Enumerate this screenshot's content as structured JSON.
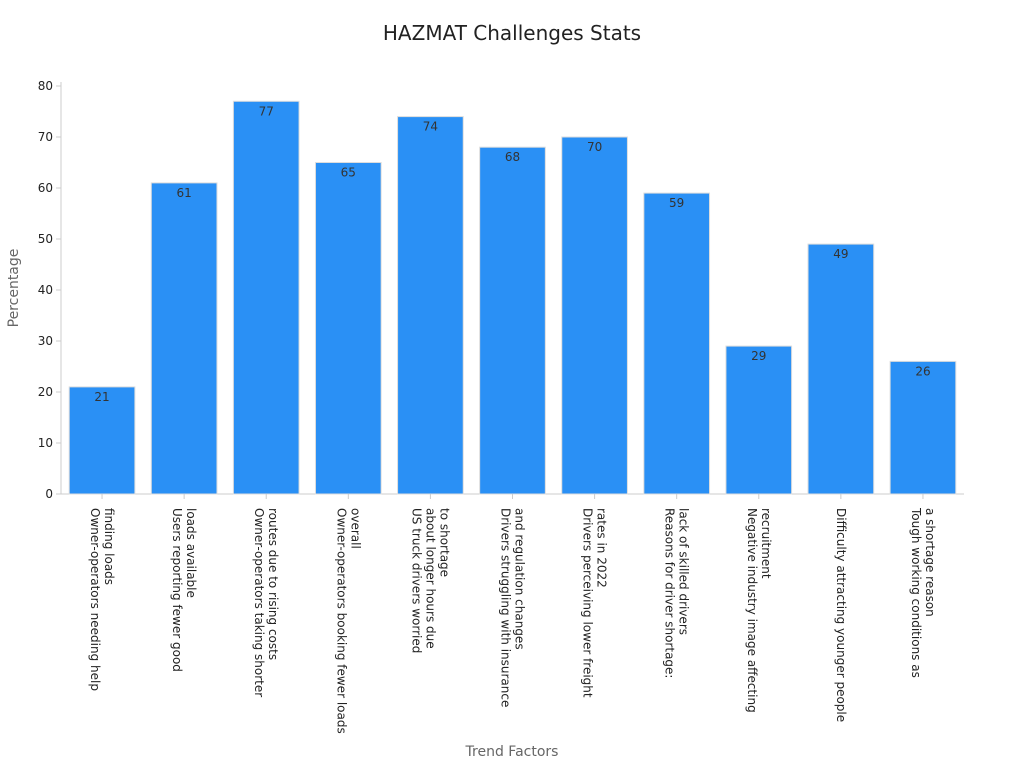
{
  "chart_data": {
    "type": "bar",
    "title": "HAZMAT Challenges Stats",
    "xlabel": "Trend Factors",
    "ylabel": "Percentage",
    "ylim": [
      0,
      80
    ],
    "yticks": [
      0,
      10,
      20,
      30,
      40,
      50,
      60,
      70,
      80
    ],
    "grid": false,
    "legend": "none",
    "bar_color": "#2a90f5",
    "categories": [
      [
        "Owner-operators needing help",
        "finding loads"
      ],
      [
        "Users reporting fewer good",
        "loads available"
      ],
      [
        "Owner-operators taking shorter",
        "routes due to rising costs"
      ],
      [
        "Owner-operators booking fewer loads",
        "overall"
      ],
      [
        "US truck drivers worried",
        "about longer hours due",
        "to shortage"
      ],
      [
        "Drivers struggling with insurance",
        "and regulation changes"
      ],
      [
        "Drivers perceiving lower freight",
        "rates in 2022"
      ],
      [
        "Reasons for driver shortage:",
        "lack of skilled drivers"
      ],
      [
        "Negative industry image affecting",
        "recruitment"
      ],
      [
        "Difficulty attracting younger people"
      ],
      [
        "Tough working conditions as",
        "a shortage reason"
      ]
    ],
    "values": [
      21,
      61,
      77,
      65,
      74,
      68,
      70,
      59,
      29,
      49,
      26
    ]
  }
}
